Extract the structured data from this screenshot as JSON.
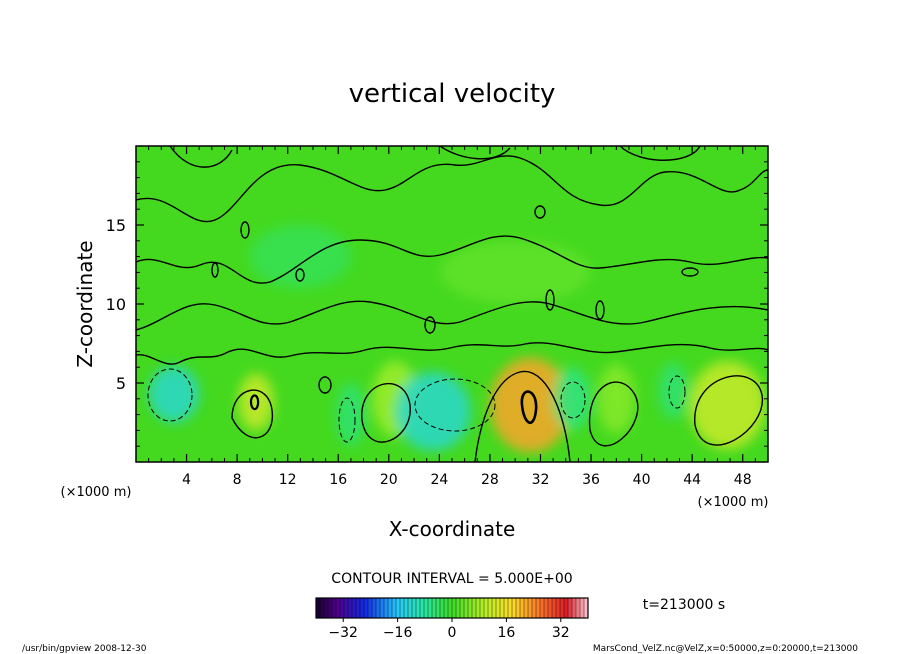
{
  "chart_data": {
    "type": "heatmap",
    "title": "vertical velocity",
    "xlabel": "X-coordinate",
    "ylabel": "Z-coordinate",
    "x_unit": "(×1000 m)",
    "y_unit": "(×1000 m)",
    "xlim": [
      0,
      50
    ],
    "ylim": [
      0,
      20
    ],
    "x_ticks": [
      "4",
      "8",
      "12",
      "16",
      "20",
      "24",
      "28",
      "32",
      "36",
      "40",
      "44",
      "48"
    ],
    "y_ticks": [
      "5",
      "10",
      "15"
    ],
    "contour_interval_text": "CONTOUR INTERVAL = 5.000E+00",
    "time_text": "t=213000 s",
    "colorbar": {
      "range": [
        -40,
        40
      ],
      "ticks": [
        "−32",
        "−16",
        "0",
        "16",
        "32"
      ],
      "colormap": "rainbow"
    },
    "blobs": [
      {
        "x": 9.5,
        "z": 3.8,
        "rx": 1.4,
        "rz": 1.8,
        "v": 12
      },
      {
        "x": 20.5,
        "z": 4.0,
        "rx": 1.8,
        "rz": 2.4,
        "v": 8
      },
      {
        "x": 31.2,
        "z": 3.6,
        "rx": 3.2,
        "rz": 3.0,
        "v": 22
      },
      {
        "x": 38.0,
        "z": 4.0,
        "rx": 1.5,
        "rz": 2.2,
        "v": 6
      },
      {
        "x": 46.8,
        "z": 3.6,
        "rx": 3.0,
        "rz": 2.8,
        "v": 12
      },
      {
        "x": 23.5,
        "z": 3.2,
        "rx": 3.0,
        "rz": 2.5,
        "v": -12
      },
      {
        "x": 3.0,
        "z": 4.3,
        "rx": 2.0,
        "rz": 1.8,
        "v": -12
      },
      {
        "x": 17.0,
        "z": 3.0,
        "rx": 1.2,
        "rz": 2.0,
        "v": -5
      },
      {
        "x": 34.5,
        "z": 4.0,
        "rx": 1.5,
        "rz": 2.0,
        "v": -6
      },
      {
        "x": 42.5,
        "z": 4.5,
        "rx": 1.2,
        "rz": 1.8,
        "v": -5
      },
      {
        "x": 13.0,
        "z": 13.0,
        "rx": 4.0,
        "rz": 2.0,
        "v": -3
      },
      {
        "x": 30.0,
        "z": 12.0,
        "rx": 6.0,
        "rz": 2.0,
        "v": 3
      }
    ]
  },
  "footer": {
    "left": "/usr/bin/gpview   2008-12-30",
    "right": "MarsCond_VelZ.nc@VelZ,x=0:50000,z=0:20000,t=213000"
  }
}
